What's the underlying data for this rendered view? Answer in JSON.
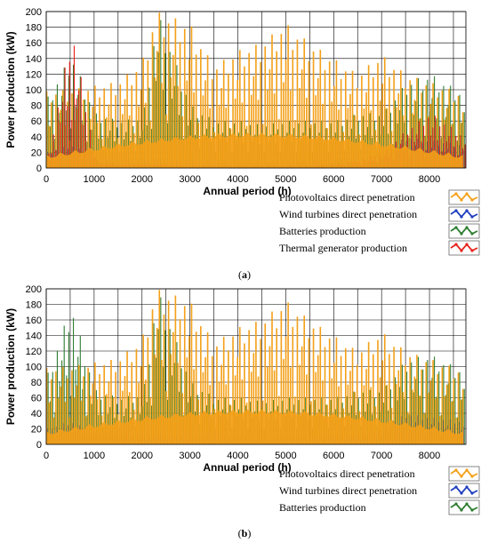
{
  "chart_data": [
    {
      "type": "bar",
      "caption_letter": "a",
      "xlabel": "Annual period (h)",
      "ylabel": "Power production (kW)",
      "xlim": [
        0,
        8760
      ],
      "ylim": [
        0,
        200
      ],
      "xticks": [
        0,
        1000,
        2000,
        3000,
        4000,
        5000,
        6000,
        7000,
        8000
      ],
      "yticks": [
        0,
        20,
        40,
        60,
        80,
        100,
        120,
        140,
        160,
        180,
        200
      ],
      "grid": true,
      "legend_position": "bottom-right",
      "series": [
        {
          "name": "Photovoltaics direct penetration",
          "color": "#f4a018",
          "x": [
            0,
            500,
            1000,
            1500,
            2000,
            2300,
            3000,
            3500,
            4000,
            4500,
            5000,
            5500,
            6000,
            6500,
            7000,
            7500,
            8000,
            8700
          ],
          "values": [
            98,
            100,
            105,
            110,
            135,
            200,
            185,
            130,
            150,
            160,
            185,
            160,
            140,
            120,
            145,
            120,
            110,
            95
          ]
        },
        {
          "name": "Wind turbines direct penetration",
          "color": "#1f3fbf",
          "x": [
            0,
            500,
            1000,
            1500,
            2000,
            2300,
            3000,
            3500,
            4000,
            4500,
            5000,
            5500,
            6000,
            6500,
            7000,
            7500,
            8000,
            8700
          ],
          "values": [
            20,
            30,
            15,
            20,
            10,
            15,
            10,
            8,
            10,
            8,
            10,
            10,
            12,
            15,
            20,
            40,
            35,
            30
          ]
        },
        {
          "name": "Batteries production",
          "color": "#2e7d32",
          "x": [
            0,
            500,
            1000,
            1500,
            2000,
            2300,
            3000,
            3500,
            4000,
            4500,
            5000,
            5500,
            6000,
            6500,
            7000,
            7500,
            8000,
            8700
          ],
          "values": [
            90,
            145,
            70,
            60,
            65,
            200,
            80,
            60,
            60,
            55,
            60,
            60,
            60,
            70,
            70,
            110,
            120,
            95
          ]
        },
        {
          "name": "Thermal generator production",
          "color": "#e8211b",
          "x": [
            0,
            500,
            1000,
            1500,
            2000,
            2300,
            3000,
            3500,
            4000,
            4500,
            5000,
            5500,
            6000,
            6500,
            7000,
            7500,
            8000,
            8700
          ],
          "values": [
            15,
            178,
            10,
            5,
            5,
            5,
            3,
            3,
            3,
            3,
            3,
            3,
            5,
            10,
            20,
            50,
            70,
            40
          ]
        }
      ]
    },
    {
      "type": "bar",
      "caption_letter": "b",
      "xlabel": "Annual period (h)",
      "ylabel": "Power production (kW)",
      "xlim": [
        0,
        8760
      ],
      "ylim": [
        0,
        200
      ],
      "xticks": [
        0,
        1000,
        2000,
        3000,
        4000,
        5000,
        6000,
        7000,
        8000
      ],
      "yticks": [
        0,
        20,
        40,
        60,
        80,
        100,
        120,
        140,
        160,
        180,
        200
      ],
      "grid": true,
      "legend_position": "bottom-right",
      "series": [
        {
          "name": "Photovoltaics direct penetration",
          "color": "#f4a018",
          "x": [
            0,
            500,
            1000,
            1500,
            2000,
            2300,
            3000,
            3500,
            4000,
            4500,
            5000,
            5500,
            6000,
            6500,
            7000,
            7500,
            8000,
            8700
          ],
          "values": [
            98,
            100,
            105,
            110,
            135,
            200,
            185,
            130,
            150,
            160,
            185,
            160,
            140,
            120,
            145,
            120,
            110,
            95
          ]
        },
        {
          "name": "Wind turbines direct penetration",
          "color": "#1f3fbf",
          "x": [
            0,
            500,
            1000,
            1500,
            2000,
            2300,
            3000,
            3500,
            4000,
            4500,
            5000,
            5500,
            6000,
            6500,
            7000,
            7500,
            8000,
            8700
          ],
          "values": [
            20,
            30,
            15,
            20,
            10,
            15,
            10,
            8,
            10,
            8,
            10,
            10,
            12,
            15,
            20,
            40,
            35,
            30
          ]
        },
        {
          "name": "Batteries production",
          "color": "#2e7d32",
          "x": [
            0,
            500,
            1000,
            1500,
            2000,
            2300,
            3000,
            3500,
            4000,
            4500,
            5000,
            5500,
            6000,
            6500,
            7000,
            7500,
            8000,
            8700
          ],
          "values": [
            90,
            180,
            70,
            60,
            65,
            200,
            80,
            60,
            60,
            55,
            60,
            60,
            60,
            70,
            70,
            110,
            115,
            95
          ]
        }
      ]
    }
  ]
}
